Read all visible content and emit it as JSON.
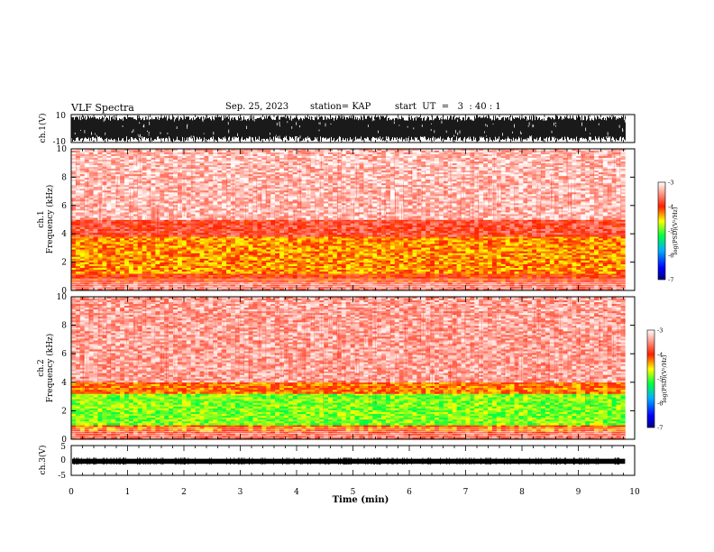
{
  "header": {
    "title": "VLF Spectra",
    "date": "Sep. 25, 2023",
    "station": "station= KAP",
    "start_ut": "start  UT  =   3  : 40 : 1"
  },
  "chart_data": [
    {
      "type": "line",
      "ylabel": "ch.1(V)",
      "ylim": [
        -10,
        10
      ],
      "yticks": [
        "10",
        "-10"
      ],
      "xlim": [
        0,
        10
      ],
      "description_series": [
        {
          "values_envelope": [
            -10,
            10
          ]
        }
      ]
    },
    {
      "type": "heatmap",
      "ylabel_line1": "ch.1",
      "ylabel_line2": "Frequency  (kHz)",
      "ylim": [
        0,
        10
      ],
      "yticks": [
        "0",
        "2",
        "4",
        "6",
        "8",
        "10"
      ],
      "xlim": [
        0,
        10
      ],
      "colorbar": {
        "label": "log(PSD)(V²/Hz)",
        "range": [
          -7,
          -3
        ],
        "ticks": [
          "-3",
          "-4",
          "-5",
          "-6",
          "-7"
        ]
      },
      "bands": [
        {
          "from_khz": 0,
          "to_khz": 0.6,
          "level": -3.6
        },
        {
          "from_khz": 0.6,
          "to_khz": 1.2,
          "level": -4.0
        },
        {
          "from_khz": 1.2,
          "to_khz": 3.8,
          "level": -4.3
        },
        {
          "from_khz": 3.8,
          "to_khz": 5.0,
          "level": -3.8
        },
        {
          "from_khz": 5.0,
          "to_khz": 10.0,
          "level": -3.3
        }
      ]
    },
    {
      "type": "heatmap",
      "ylabel_line1": "ch.2",
      "ylabel_line2": "Frequency  (kHz)",
      "ylim": [
        0,
        10
      ],
      "yticks": [
        "0",
        "2",
        "4",
        "6",
        "8",
        "10"
      ],
      "xlim": [
        0,
        10
      ],
      "colorbar": {
        "label": "log(PSD)(V²/Hz)",
        "range": [
          -7,
          -3
        ],
        "ticks": [
          "-3",
          "-4",
          "-5",
          "-6",
          "-7"
        ]
      },
      "bands": [
        {
          "from_khz": 0,
          "to_khz": 0.6,
          "level": -3.7
        },
        {
          "from_khz": 0.6,
          "to_khz": 1.0,
          "level": -4.2
        },
        {
          "from_khz": 1.0,
          "to_khz": 3.2,
          "level": -4.9
        },
        {
          "from_khz": 3.2,
          "to_khz": 4.0,
          "level": -4.2
        },
        {
          "from_khz": 4.0,
          "to_khz": 10.0,
          "level": -3.4
        }
      ]
    },
    {
      "type": "line",
      "ylabel": "ch.3(V)",
      "ylim": [
        -5,
        5
      ],
      "yticks": [
        "5",
        "0",
        "-5"
      ],
      "xlim": [
        0,
        10
      ],
      "xlabel": "Time  (min)",
      "xticks": [
        "0",
        "1",
        "2",
        "3",
        "4",
        "5",
        "6",
        "7",
        "8",
        "9",
        "10"
      ],
      "signal_band": [
        -1.2,
        0.6
      ]
    }
  ]
}
